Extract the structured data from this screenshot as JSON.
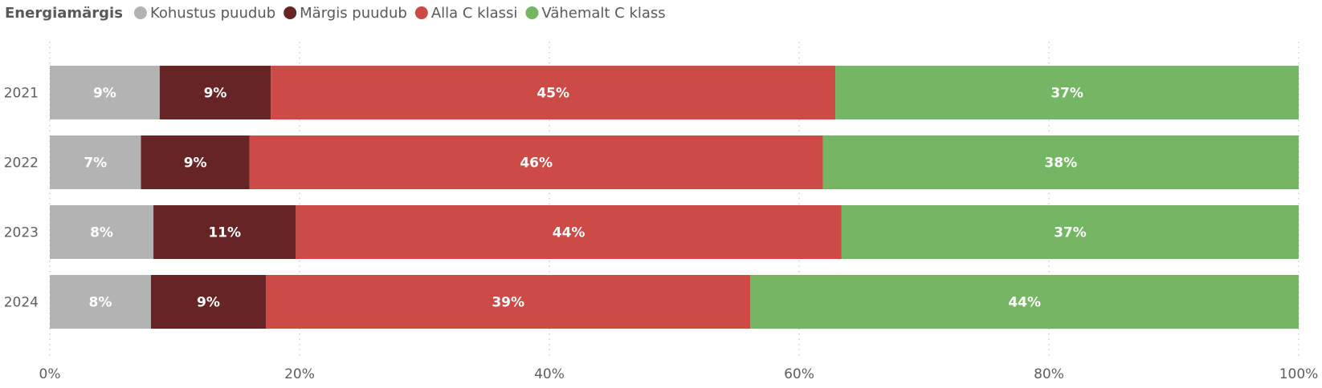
{
  "chart_data": {
    "type": "bar",
    "orientation": "horizontal",
    "stacked": "100%",
    "legend": {
      "title": "Energiamärgis",
      "placement": "top-left"
    },
    "categories": [
      "2021",
      "2022",
      "2023",
      "2024"
    ],
    "series": [
      {
        "name": "Kohustus puudub",
        "color": "#b3b3b3",
        "values": [
          8.8,
          7.3,
          8.3,
          8.1
        ],
        "labels": [
          "9%",
          "7%",
          "8%",
          "8%"
        ]
      },
      {
        "name": "Märgis puudub",
        "color": "#672424",
        "values": [
          8.9,
          8.7,
          11.4,
          9.2
        ],
        "labels": [
          "9%",
          "9%",
          "11%",
          "9%"
        ]
      },
      {
        "name": "Alla C klassi",
        "color": "#cc4b46",
        "values": [
          45.2,
          45.9,
          43.7,
          38.8
        ],
        "labels": [
          "45%",
          "46%",
          "44%",
          "39%"
        ]
      },
      {
        "name": "Vähemalt C klass",
        "color": "#74b663",
        "values": [
          37.1,
          38.1,
          36.6,
          43.9
        ],
        "labels": [
          "37%",
          "38%",
          "37%",
          "44%"
        ]
      }
    ],
    "xaxis": {
      "range": [
        0,
        100
      ],
      "ticks": [
        "0%",
        "20%",
        "40%",
        "60%",
        "80%",
        "100%"
      ]
    },
    "grid": true
  }
}
